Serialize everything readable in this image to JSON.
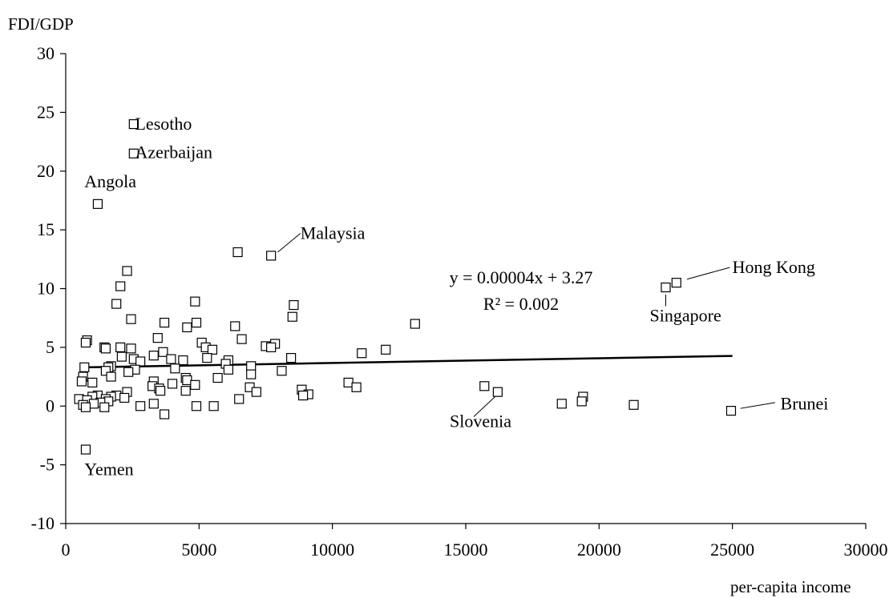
{
  "chart_data": {
    "type": "scatter",
    "ylabel": "FDI/GDP",
    "xlabel": "per-capita income",
    "xlim": [
      0,
      30000
    ],
    "ylim": [
      -10,
      30
    ],
    "x_ticks": [
      "0",
      "5000",
      "10000",
      "15000",
      "20000",
      "25000",
      "30000"
    ],
    "y_ticks": [
      "-10",
      "-5",
      "0",
      "5",
      "10",
      "15",
      "20",
      "25",
      "30"
    ],
    "grid": false,
    "marker": "open-square",
    "trendline": {
      "equation": "y = 0.00004x + 3.27",
      "r_squared": "R² = 0.002",
      "x_range": [
        600,
        25000
      ],
      "slope": 4e-05,
      "intercept": 3.27
    },
    "labels": [
      {
        "text": "Lesotho",
        "x": 2600,
        "y": 24.0
      },
      {
        "text": "Azerbaijan",
        "x": 2600,
        "y": 21.6
      },
      {
        "text": "Angola",
        "x": 700,
        "y": 19.1
      },
      {
        "text": "Malaysia",
        "x": 8800,
        "y": 14.7
      },
      {
        "text": "Hong Kong",
        "x": 25000,
        "y": 11.8
      },
      {
        "text": "Singapore",
        "x": 21900,
        "y": 7.7
      },
      {
        "text": "Slovenia",
        "x": 14400,
        "y": -1.3
      },
      {
        "text": "Brunei",
        "x": 26800,
        "y": 0.2
      },
      {
        "text": "Yemen",
        "x": 700,
        "y": -5.4
      }
    ],
    "points": [
      {
        "x": 2550,
        "y": 24.0
      },
      {
        "x": 2550,
        "y": 21.5
      },
      {
        "x": 1200,
        "y": 17.2
      },
      {
        "x": 6450,
        "y": 13.1
      },
      {
        "x": 7700,
        "y": 12.8
      },
      {
        "x": 2300,
        "y": 11.5
      },
      {
        "x": 22900,
        "y": 10.5
      },
      {
        "x": 22500,
        "y": 10.1
      },
      {
        "x": 2050,
        "y": 10.2
      },
      {
        "x": 4850,
        "y": 8.9
      },
      {
        "x": 1900,
        "y": 8.7
      },
      {
        "x": 8550,
        "y": 8.6
      },
      {
        "x": 8500,
        "y": 7.6
      },
      {
        "x": 2450,
        "y": 7.4
      },
      {
        "x": 3700,
        "y": 7.1
      },
      {
        "x": 4900,
        "y": 7.1
      },
      {
        "x": 13100,
        "y": 7.0
      },
      {
        "x": 4550,
        "y": 6.7
      },
      {
        "x": 6350,
        "y": 6.8
      },
      {
        "x": 3450,
        "y": 5.8
      },
      {
        "x": 6600,
        "y": 5.7
      },
      {
        "x": 800,
        "y": 5.6
      },
      {
        "x": 750,
        "y": 5.4
      },
      {
        "x": 5100,
        "y": 5.4
      },
      {
        "x": 7850,
        "y": 5.3
      },
      {
        "x": 7500,
        "y": 5.1
      },
      {
        "x": 7700,
        "y": 5.0
      },
      {
        "x": 5250,
        "y": 5.0
      },
      {
        "x": 2050,
        "y": 5.0
      },
      {
        "x": 1450,
        "y": 5.0
      },
      {
        "x": 1500,
        "y": 4.9
      },
      {
        "x": 2450,
        "y": 4.9
      },
      {
        "x": 5500,
        "y": 4.8
      },
      {
        "x": 12000,
        "y": 4.8
      },
      {
        "x": 3650,
        "y": 4.6
      },
      {
        "x": 11100,
        "y": 4.5
      },
      {
        "x": 3300,
        "y": 4.3
      },
      {
        "x": 2100,
        "y": 4.2
      },
      {
        "x": 5300,
        "y": 4.1
      },
      {
        "x": 8450,
        "y": 4.1
      },
      {
        "x": 2550,
        "y": 4.0
      },
      {
        "x": 3950,
        "y": 4.0
      },
      {
        "x": 4400,
        "y": 3.9
      },
      {
        "x": 6100,
        "y": 3.9
      },
      {
        "x": 2800,
        "y": 3.8
      },
      {
        "x": 6000,
        "y": 3.6
      },
      {
        "x": 6950,
        "y": 3.4
      },
      {
        "x": 1700,
        "y": 3.4
      },
      {
        "x": 700,
        "y": 3.3
      },
      {
        "x": 1600,
        "y": 3.3
      },
      {
        "x": 4100,
        "y": 3.2
      },
      {
        "x": 6100,
        "y": 3.1
      },
      {
        "x": 2600,
        "y": 3.1
      },
      {
        "x": 1500,
        "y": 3.0
      },
      {
        "x": 2350,
        "y": 2.9
      },
      {
        "x": 8100,
        "y": 3.0
      },
      {
        "x": 6950,
        "y": 2.7
      },
      {
        "x": 650,
        "y": 2.5
      },
      {
        "x": 1700,
        "y": 2.5
      },
      {
        "x": 5700,
        "y": 2.4
      },
      {
        "x": 4500,
        "y": 2.4
      },
      {
        "x": 4550,
        "y": 2.2
      },
      {
        "x": 3300,
        "y": 2.1
      },
      {
        "x": 600,
        "y": 2.1
      },
      {
        "x": 1000,
        "y": 2.0
      },
      {
        "x": 10600,
        "y": 2.0
      },
      {
        "x": 4000,
        "y": 1.9
      },
      {
        "x": 4850,
        "y": 1.8
      },
      {
        "x": 3250,
        "y": 1.7
      },
      {
        "x": 15700,
        "y": 1.7
      },
      {
        "x": 6900,
        "y": 1.6
      },
      {
        "x": 10900,
        "y": 1.6
      },
      {
        "x": 3500,
        "y": 1.5
      },
      {
        "x": 8850,
        "y": 1.4
      },
      {
        "x": 4500,
        "y": 1.3
      },
      {
        "x": 3550,
        "y": 1.3
      },
      {
        "x": 2300,
        "y": 1.2
      },
      {
        "x": 16200,
        "y": 1.2
      },
      {
        "x": 7150,
        "y": 1.2
      },
      {
        "x": 9100,
        "y": 1.0
      },
      {
        "x": 8900,
        "y": 0.9
      },
      {
        "x": 1900,
        "y": 0.9
      },
      {
        "x": 1200,
        "y": 0.9
      },
      {
        "x": 1700,
        "y": 0.8
      },
      {
        "x": 1000,
        "y": 0.8
      },
      {
        "x": 19400,
        "y": 0.8
      },
      {
        "x": 2200,
        "y": 0.7
      },
      {
        "x": 1500,
        "y": 0.6
      },
      {
        "x": 500,
        "y": 0.6
      },
      {
        "x": 6500,
        "y": 0.6
      },
      {
        "x": 800,
        "y": 0.5
      },
      {
        "x": 1600,
        "y": 0.4
      },
      {
        "x": 19350,
        "y": 0.4
      },
      {
        "x": 1300,
        "y": 0.3
      },
      {
        "x": 18600,
        "y": 0.2
      },
      {
        "x": 3300,
        "y": 0.2
      },
      {
        "x": 1050,
        "y": 0.2
      },
      {
        "x": 21300,
        "y": 0.1
      },
      {
        "x": 650,
        "y": 0.1
      },
      {
        "x": 2800,
        "y": 0.0
      },
      {
        "x": 4900,
        "y": 0.0
      },
      {
        "x": 5550,
        "y": 0.0
      },
      {
        "x": 750,
        "y": -0.1
      },
      {
        "x": 1450,
        "y": -0.1
      },
      {
        "x": 24950,
        "y": -0.4
      },
      {
        "x": 3700,
        "y": -0.7
      },
      {
        "x": 750,
        "y": -3.7
      }
    ]
  }
}
